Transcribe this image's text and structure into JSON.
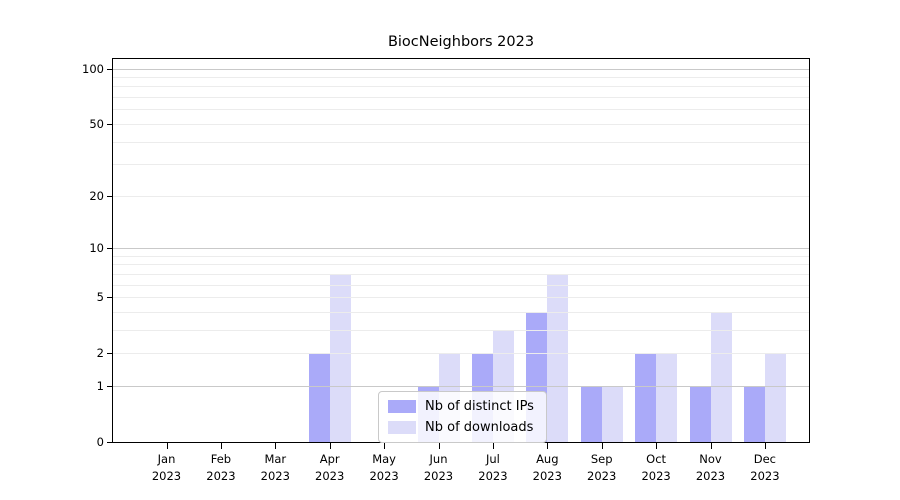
{
  "chart_data": {
    "type": "bar",
    "title": "BiocNeighbors 2023",
    "categories": [
      "Jan",
      "Feb",
      "Mar",
      "Apr",
      "May",
      "Jun",
      "Jul",
      "Aug",
      "Sep",
      "Oct",
      "Nov",
      "Dec"
    ],
    "year_label": "2023",
    "series": [
      {
        "name": "Nb of distinct IPs",
        "color": "#aaaaf9",
        "values": [
          0,
          0,
          0,
          2,
          0,
          1,
          2,
          4,
          1,
          2,
          1,
          1
        ]
      },
      {
        "name": "Nb of downloads",
        "color": "#dcdcf9",
        "values": [
          0,
          0,
          0,
          7,
          0,
          2,
          3,
          7,
          1,
          2,
          4,
          2
        ]
      }
    ],
    "xlabel": "",
    "ylabel": "",
    "y_scale": "log1p",
    "y_ticks": [
      0,
      1,
      2,
      5,
      10,
      20,
      50,
      100
    ],
    "grid_major_values": [
      1,
      10,
      100
    ],
    "grid_minor_values": [
      2,
      3,
      4,
      5,
      6,
      7,
      8,
      9,
      20,
      30,
      40,
      50,
      60,
      70,
      80,
      90
    ],
    "ylim": [
      0,
      115
    ],
    "grid": "on",
    "legend_position": "lower center inside plot",
    "colors": {
      "bar_ips": "#aaaaf9",
      "bar_downloads": "#dcdcf9",
      "grid_major": "#c9c9c9",
      "grid_minor": "#ececec",
      "axis": "#000000",
      "background": "#ffffff"
    }
  }
}
